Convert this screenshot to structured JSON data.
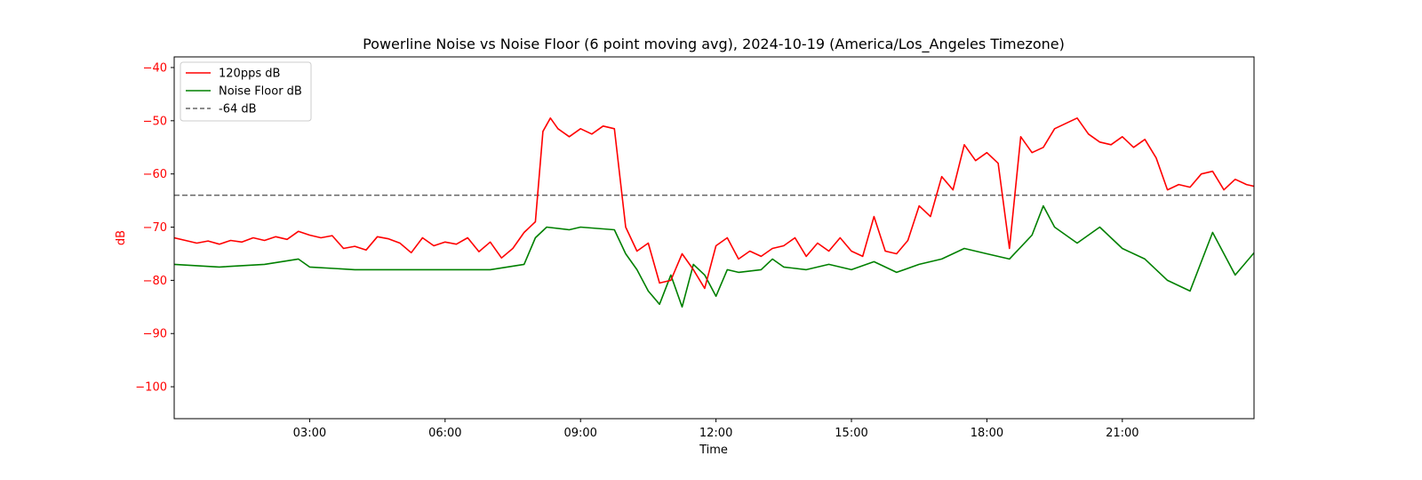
{
  "chart_data": {
    "type": "line",
    "title": "Powerline Noise vs Noise Floor (6 point moving avg), 2024-10-19 (America/Los_Angeles Timezone)",
    "xlabel": "Time",
    "ylabel": "dB",
    "xlim": [
      "00:00",
      "23:55"
    ],
    "ylim": [
      -106,
      -38
    ],
    "x_ticks": [
      "03:00",
      "06:00",
      "09:00",
      "12:00",
      "15:00",
      "18:00",
      "21:00"
    ],
    "y_ticks": [
      -40,
      -50,
      -60,
      -70,
      -80,
      -90,
      -100
    ],
    "y_tick_color": "#ff0000",
    "ylabel_color": "#ff0000",
    "grid": false,
    "legend_position": "top-left",
    "reference_line": {
      "name": "-64 dB",
      "value": -64,
      "color": "#666666",
      "style": "dashed"
    },
    "series": [
      {
        "name": "120pps dB",
        "color": "#ff0000",
        "points": [
          [
            "00:00",
            -72.0
          ],
          [
            "00:15",
            -72.5
          ],
          [
            "00:30",
            -73.0
          ],
          [
            "00:45",
            -72.6
          ],
          [
            "01:00",
            -73.2
          ],
          [
            "01:15",
            -72.5
          ],
          [
            "01:30",
            -72.8
          ],
          [
            "01:45",
            -72.0
          ],
          [
            "02:00",
            -72.5
          ],
          [
            "02:15",
            -71.8
          ],
          [
            "02:30",
            -72.3
          ],
          [
            "02:45",
            -70.8
          ],
          [
            "03:00",
            -71.5
          ],
          [
            "03:15",
            -72.0
          ],
          [
            "03:30",
            -71.6
          ],
          [
            "03:45",
            -74.0
          ],
          [
            "04:00",
            -73.6
          ],
          [
            "04:15",
            -74.3
          ],
          [
            "04:30",
            -71.8
          ],
          [
            "04:45",
            -72.2
          ],
          [
            "05:00",
            -73.0
          ],
          [
            "05:15",
            -74.8
          ],
          [
            "05:30",
            -72.0
          ],
          [
            "05:45",
            -73.5
          ],
          [
            "06:00",
            -72.8
          ],
          [
            "06:15",
            -73.2
          ],
          [
            "06:30",
            -72.0
          ],
          [
            "06:45",
            -74.6
          ],
          [
            "07:00",
            -72.8
          ],
          [
            "07:15",
            -75.8
          ],
          [
            "07:30",
            -74.0
          ],
          [
            "07:45",
            -71.0
          ],
          [
            "08:00",
            -69.0
          ],
          [
            "08:10",
            -52.0
          ],
          [
            "08:20",
            -49.5
          ],
          [
            "08:30",
            -51.5
          ],
          [
            "08:45",
            -53.0
          ],
          [
            "09:00",
            -51.5
          ],
          [
            "09:15",
            -52.5
          ],
          [
            "09:30",
            -51.0
          ],
          [
            "09:45",
            -51.5
          ],
          [
            "10:00",
            -70.0
          ],
          [
            "10:15",
            -74.5
          ],
          [
            "10:30",
            -73.0
          ],
          [
            "10:45",
            -80.5
          ],
          [
            "11:00",
            -80.0
          ],
          [
            "11:15",
            -75.0
          ],
          [
            "11:30",
            -78.0
          ],
          [
            "11:45",
            -81.5
          ],
          [
            "12:00",
            -73.5
          ],
          [
            "12:15",
            -72.0
          ],
          [
            "12:30",
            -76.0
          ],
          [
            "12:45",
            -74.5
          ],
          [
            "13:00",
            -75.5
          ],
          [
            "13:15",
            -74.0
          ],
          [
            "13:30",
            -73.5
          ],
          [
            "13:45",
            -72.0
          ],
          [
            "14:00",
            -75.5
          ],
          [
            "14:15",
            -73.0
          ],
          [
            "14:30",
            -74.5
          ],
          [
            "14:45",
            -72.0
          ],
          [
            "15:00",
            -74.5
          ],
          [
            "15:15",
            -75.5
          ],
          [
            "15:30",
            -68.0
          ],
          [
            "15:45",
            -74.5
          ],
          [
            "16:00",
            -75.0
          ],
          [
            "16:15",
            -72.5
          ],
          [
            "16:30",
            -66.0
          ],
          [
            "16:45",
            -68.0
          ],
          [
            "17:00",
            -60.5
          ],
          [
            "17:15",
            -63.0
          ],
          [
            "17:30",
            -54.5
          ],
          [
            "17:45",
            -57.5
          ],
          [
            "18:00",
            -56.0
          ],
          [
            "18:15",
            -58.0
          ],
          [
            "18:30",
            -74.0
          ],
          [
            "18:45",
            -53.0
          ],
          [
            "19:00",
            -56.0
          ],
          [
            "19:15",
            -55.0
          ],
          [
            "19:30",
            -51.5
          ],
          [
            "19:45",
            -50.5
          ],
          [
            "20:00",
            -49.5
          ],
          [
            "20:15",
            -52.5
          ],
          [
            "20:30",
            -54.0
          ],
          [
            "20:45",
            -54.5
          ],
          [
            "21:00",
            -53.0
          ],
          [
            "21:15",
            -55.0
          ],
          [
            "21:30",
            -53.5
          ],
          [
            "21:45",
            -57.0
          ],
          [
            "22:00",
            -63.0
          ],
          [
            "22:15",
            -62.0
          ],
          [
            "22:30",
            -62.5
          ],
          [
            "22:45",
            -60.0
          ],
          [
            "23:00",
            -59.5
          ],
          [
            "23:15",
            -63.0
          ],
          [
            "23:30",
            -61.0
          ],
          [
            "23:45",
            -62.0
          ],
          [
            "00:00+1",
            -62.5
          ]
        ]
      },
      {
        "name": "Noise Floor dB",
        "color": "#008000",
        "points": [
          [
            "00:00",
            -77.0
          ],
          [
            "01:00",
            -77.5
          ],
          [
            "02:00",
            -77.0
          ],
          [
            "02:45",
            -76.0
          ],
          [
            "03:00",
            -77.5
          ],
          [
            "04:00",
            -78.0
          ],
          [
            "05:00",
            -78.0
          ],
          [
            "06:00",
            -78.0
          ],
          [
            "07:00",
            -78.0
          ],
          [
            "07:45",
            -77.0
          ],
          [
            "08:00",
            -72.0
          ],
          [
            "08:15",
            -70.0
          ],
          [
            "08:45",
            -70.5
          ],
          [
            "09:00",
            -70.0
          ],
          [
            "09:45",
            -70.5
          ],
          [
            "10:00",
            -75.0
          ],
          [
            "10:15",
            -78.0
          ],
          [
            "10:30",
            -82.0
          ],
          [
            "10:45",
            -84.5
          ],
          [
            "11:00",
            -79.0
          ],
          [
            "11:15",
            -85.0
          ],
          [
            "11:30",
            -77.0
          ],
          [
            "11:45",
            -79.0
          ],
          [
            "12:00",
            -83.0
          ],
          [
            "12:15",
            -78.0
          ],
          [
            "12:30",
            -78.5
          ],
          [
            "13:00",
            -78.0
          ],
          [
            "13:15",
            -76.0
          ],
          [
            "13:30",
            -77.5
          ],
          [
            "14:00",
            -78.0
          ],
          [
            "14:30",
            -77.0
          ],
          [
            "15:00",
            -78.0
          ],
          [
            "15:30",
            -76.5
          ],
          [
            "16:00",
            -78.5
          ],
          [
            "16:30",
            -77.0
          ],
          [
            "17:00",
            -76.0
          ],
          [
            "17:30",
            -74.0
          ],
          [
            "18:00",
            -75.0
          ],
          [
            "18:30",
            -76.0
          ],
          [
            "19:00",
            -71.5
          ],
          [
            "19:15",
            -66.0
          ],
          [
            "19:30",
            -70.0
          ],
          [
            "20:00",
            -73.0
          ],
          [
            "20:30",
            -70.0
          ],
          [
            "21:00",
            -74.0
          ],
          [
            "21:30",
            -76.0
          ],
          [
            "22:00",
            -80.0
          ],
          [
            "22:30",
            -82.0
          ],
          [
            "23:00",
            -71.0
          ],
          [
            "23:30",
            -79.0
          ],
          [
            "24:00",
            -74.0
          ]
        ]
      }
    ]
  }
}
